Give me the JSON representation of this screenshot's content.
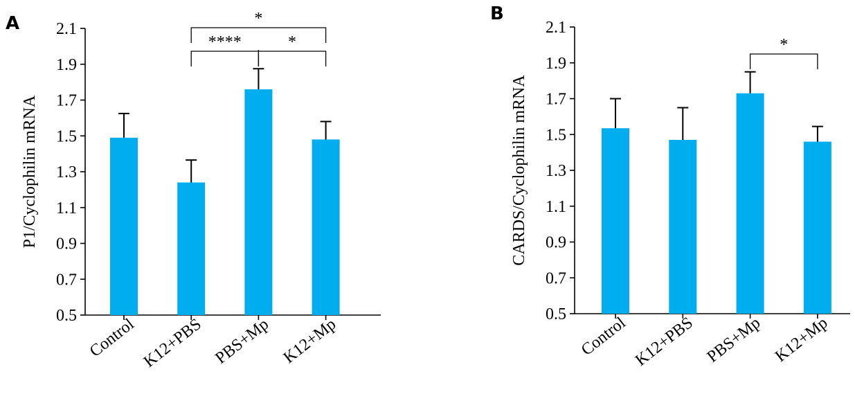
{
  "chart_data": [
    {
      "panel": "A",
      "type": "bar",
      "ylabel": "P1/Cyclophilin mRNA",
      "categories": [
        "Control",
        "K12+PBS",
        "PBS+Mp",
        "K12+Mp"
      ],
      "values": [
        1.49,
        1.24,
        1.76,
        1.48
      ],
      "errors": [
        0.135,
        0.125,
        0.115,
        0.1
      ],
      "ylim": [
        0.5,
        2.1
      ],
      "yticks": [
        "0.5",
        "0.7",
        "0.9",
        "1.1",
        "1.3",
        "1.5",
        "1.7",
        "1.9",
        "2.1"
      ],
      "bar_color": "#00AEEF",
      "significance": [
        {
          "from": 1,
          "to": 3,
          "label": "*",
          "level": 0
        },
        {
          "from": 1,
          "to": 2,
          "label": "****",
          "level": 1
        },
        {
          "from": 2,
          "to": 3,
          "label": "*",
          "level": 1
        }
      ]
    },
    {
      "panel": "B",
      "type": "bar",
      "ylabel": "CARDS/Cyclophilin mRNA",
      "categories": [
        "Control",
        "K12+PBS",
        "PBS+Mp",
        "K12+Mp"
      ],
      "values": [
        1.535,
        1.47,
        1.73,
        1.46
      ],
      "errors": [
        0.165,
        0.18,
        0.12,
        0.085
      ],
      "ylim": [
        0.5,
        2.1
      ],
      "yticks": [
        "0.5",
        "0.7",
        "0.9",
        "1.1",
        "1.3",
        "1.5",
        "1.7",
        "1.9",
        "2.1"
      ],
      "bar_color": "#00AEEF",
      "significance": [
        {
          "from": 2,
          "to": 3,
          "label": "*",
          "level": 0
        }
      ]
    }
  ]
}
